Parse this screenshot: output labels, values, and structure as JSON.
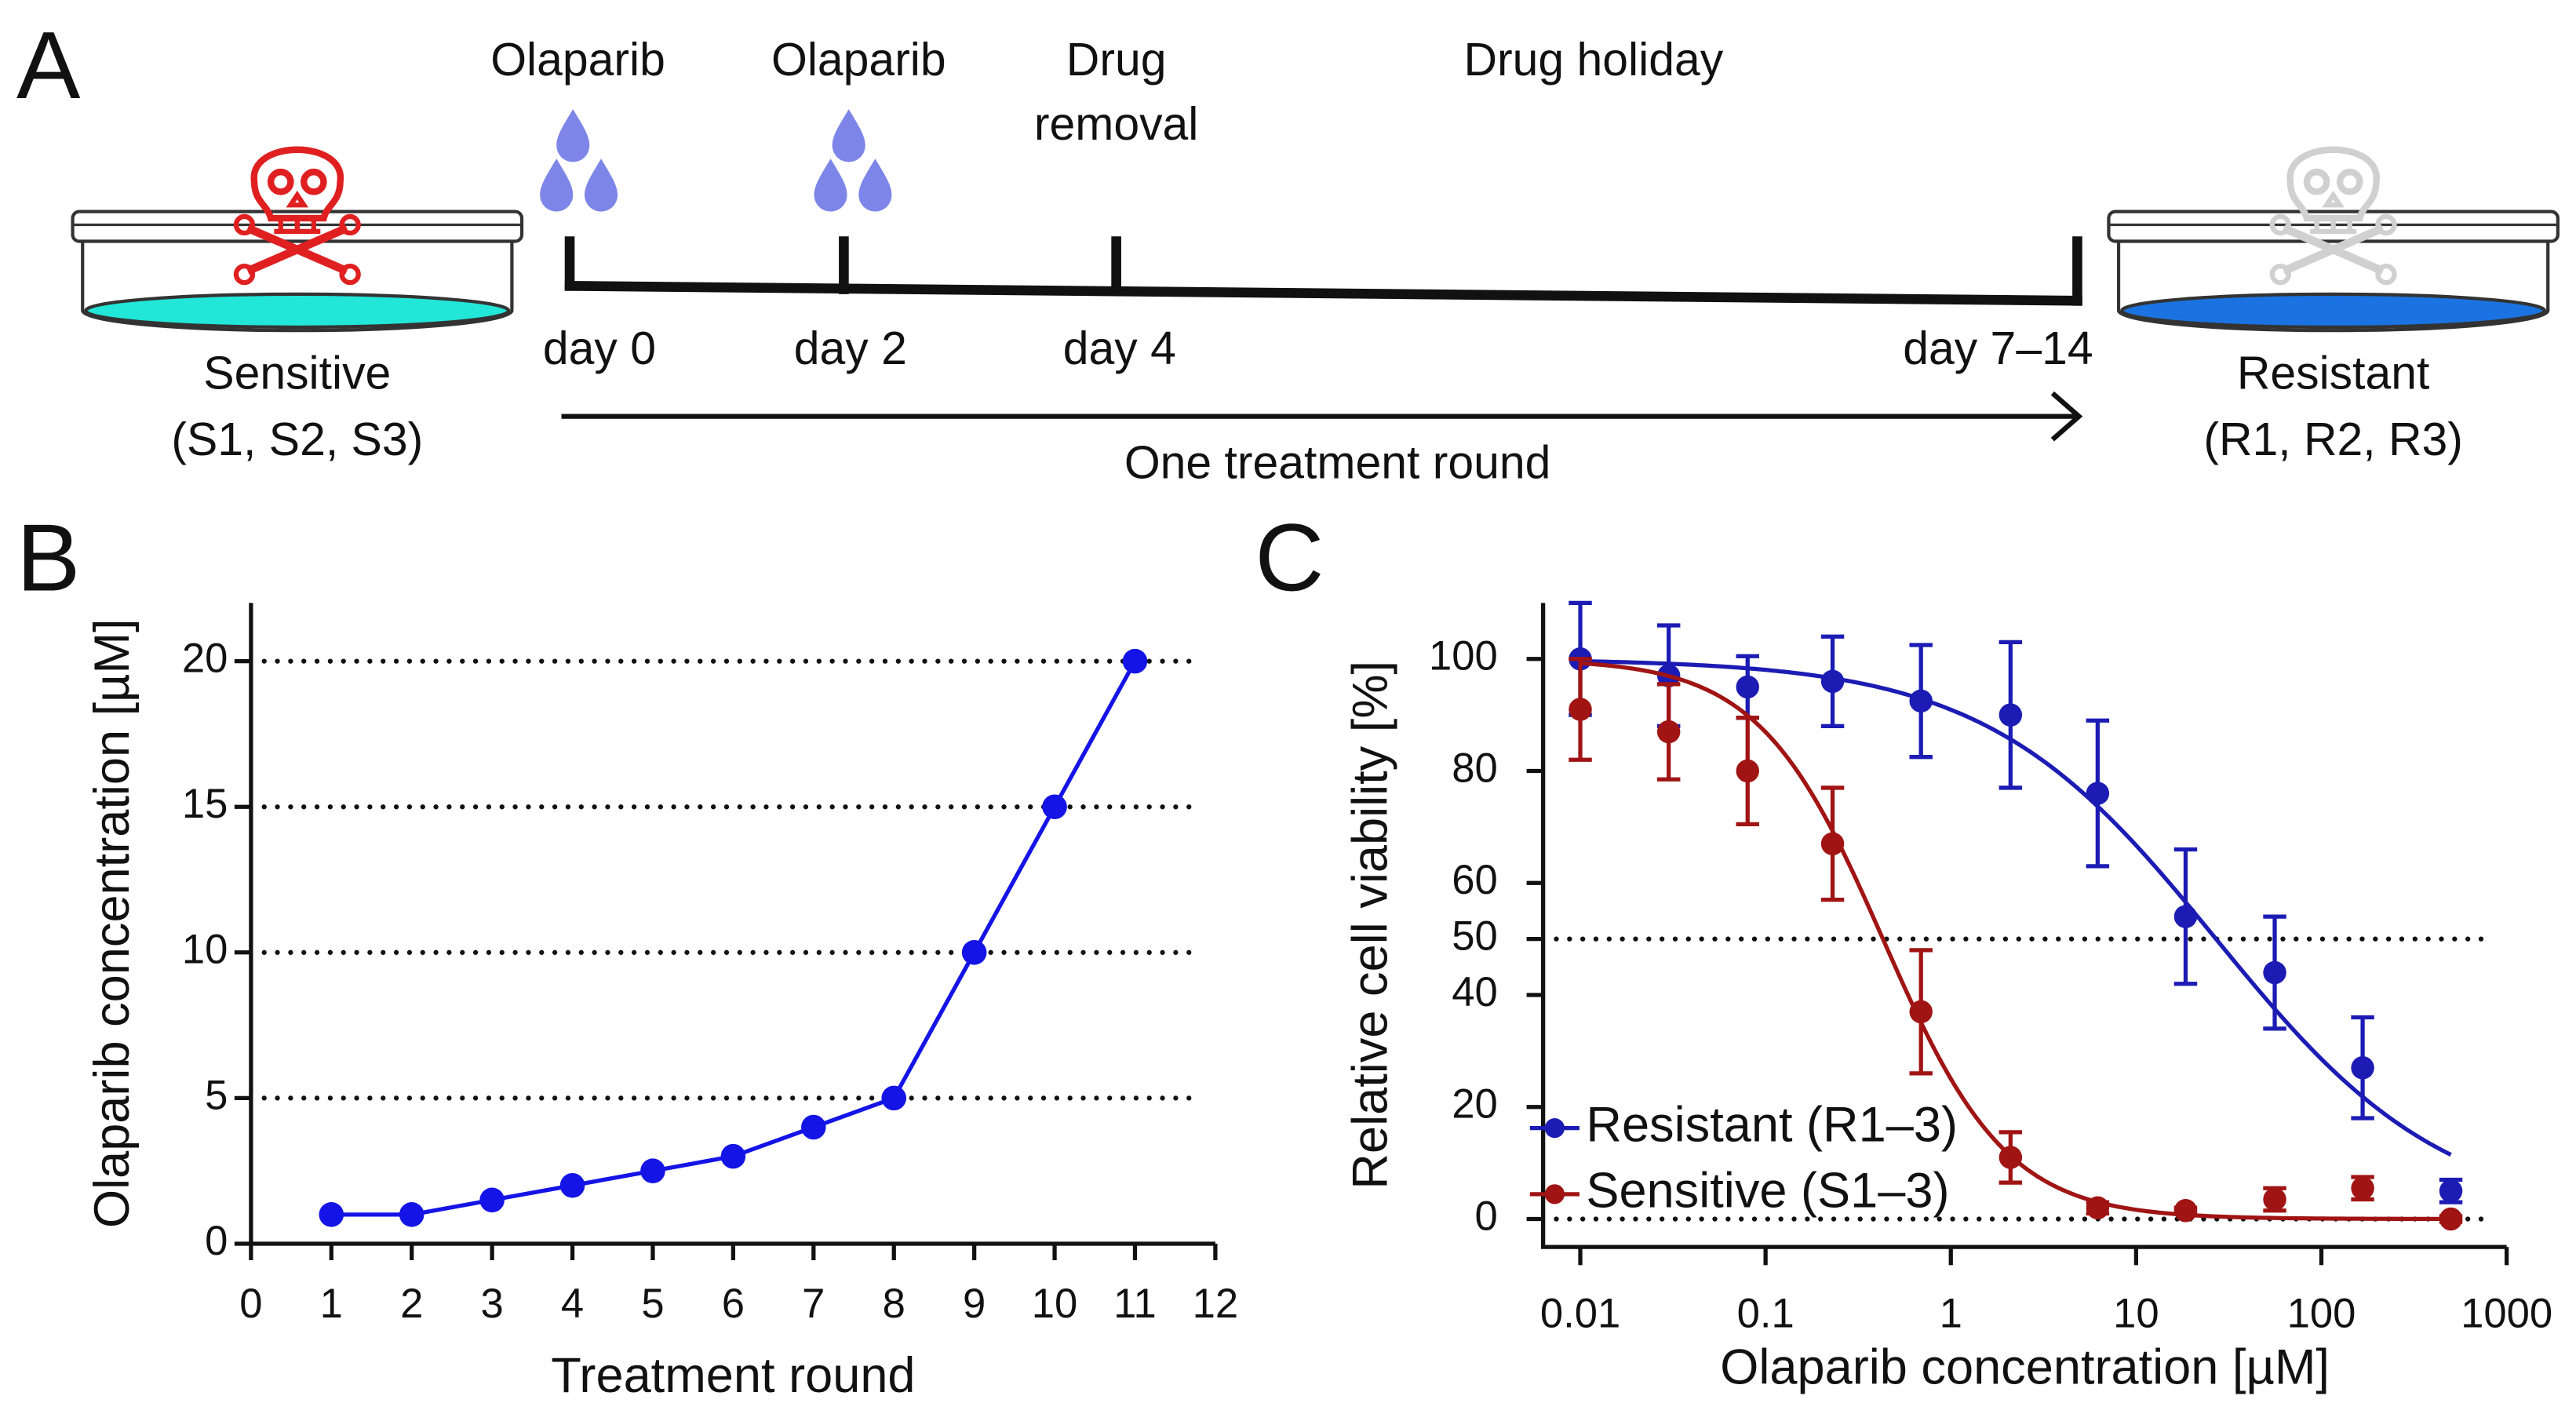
{
  "diagram": {
    "panel": "A",
    "start_label": "Sensitive",
    "start_sub": "(S1, S2, S3)",
    "end_label": "Resistant",
    "end_sub": "(R1, R2, R3)",
    "dose_1": "Olaparib",
    "dose_2": "Olaparib",
    "drug_removal": [
      "Drug",
      "removal"
    ],
    "holiday": "Drug holiday",
    "days": [
      "day 0",
      "day 2",
      "day 4",
      "day 7–14"
    ],
    "span_label": "One treatment round"
  },
  "chart_data": [
    {
      "type": "line",
      "panel": "B",
      "xlabel": "Treatment round",
      "ylabel": "Olaparib concentration [µM]",
      "x": [
        1,
        2,
        3,
        4,
        5,
        6,
        7,
        8,
        9,
        10,
        11
      ],
      "values": [
        1,
        1,
        1.5,
        2,
        2.5,
        3,
        4,
        5,
        10,
        15,
        20
      ],
      "color": "#1414e6",
      "xlim": [
        0,
        12
      ],
      "xticks": [
        0,
        1,
        2,
        3,
        4,
        5,
        6,
        7,
        8,
        9,
        10,
        11,
        12
      ],
      "ylim": [
        0,
        22
      ],
      "yticks": [
        0,
        5,
        10,
        15,
        20
      ],
      "grid": true
    },
    {
      "type": "dose_response",
      "panel": "C",
      "xlabel": "Olaparib concentration [µM]",
      "ylabel": "Relative cell viability [%]",
      "log_x": true,
      "x": [
        0.01,
        0.03,
        0.08,
        0.23,
        0.69,
        2.1,
        6.2,
        18.5,
        56,
        167,
        500
      ],
      "series": [
        {
          "name": "Resistant (R1–3)",
          "color": "#1c1cb4",
          "values": [
            100,
            97,
            95,
            96,
            92.5,
            90,
            76,
            54,
            44,
            27,
            5
          ],
          "errors": [
            10,
            9,
            5.5,
            8,
            10,
            13,
            13,
            12,
            10,
            9,
            2
          ],
          "fit": {
            "top": 100,
            "bottom": 0,
            "ec50": 27,
            "hill": 0.7
          }
        },
        {
          "name": "Sensitive (S1–3)",
          "color": "#a01414",
          "values": [
            91,
            87,
            80,
            67,
            37,
            11,
            2,
            1.5,
            3.5,
            5.5,
            0
          ],
          "errors": [
            9,
            8.5,
            9.5,
            10,
            11,
            4.5,
            1,
            0.5,
            2,
            2,
            0.5
          ],
          "fit": {
            "top": 100,
            "bottom": 0,
            "ec50": 0.43,
            "hill": 1.3
          }
        }
      ],
      "xlim": [
        0.0063,
        1000
      ],
      "xticks": [
        0.01,
        0.1,
        1,
        10,
        100,
        1000
      ],
      "ylim": [
        -5,
        110
      ],
      "yticks": [
        0,
        20,
        40,
        50,
        60,
        80,
        100
      ],
      "reference_lines": [
        50,
        0
      ],
      "legend": "lower left"
    }
  ]
}
